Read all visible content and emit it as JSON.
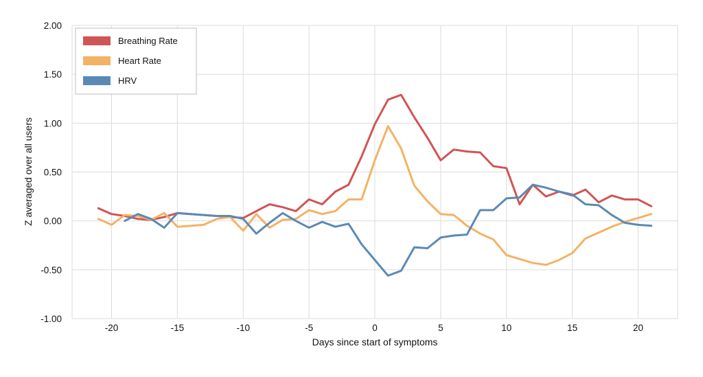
{
  "chart_data": {
    "type": "line",
    "title": "",
    "xlabel": "Days since start of symptoms",
    "ylabel": "Z averaged over all users",
    "xlim": [
      -23,
      23
    ],
    "ylim": [
      -1.0,
      2.0
    ],
    "xticks": [
      -20,
      -15,
      -10,
      -5,
      0,
      5,
      10,
      15,
      20
    ],
    "xtick_labels": [
      "-20",
      "-15",
      "-10",
      "-5",
      "0",
      "5",
      "10",
      "15",
      "20"
    ],
    "yticks": [
      -1.0,
      -0.5,
      0.0,
      0.5,
      1.0,
      1.5,
      2.0
    ],
    "ytick_labels": [
      "-1.00",
      "-0.50",
      "0.00",
      "0.50",
      "1.00",
      "1.50",
      "2.00"
    ],
    "grid": true,
    "legend_position": "top-left",
    "series": [
      {
        "name": "Breathing Rate",
        "color": "#d05454",
        "x": [
          -21,
          -20,
          -19,
          -18,
          -17,
          -16,
          -15,
          -14,
          -13,
          -12,
          -11,
          -10,
          -9,
          -8,
          -7,
          -6,
          -5,
          -4,
          -3,
          -2,
          -1,
          0,
          1,
          2,
          3,
          4,
          5,
          6,
          7,
          8,
          9,
          10,
          11,
          12,
          13,
          14,
          15,
          16,
          17,
          18,
          19,
          20,
          21
        ],
        "y": [
          0.13,
          0.07,
          0.05,
          0.02,
          0.01,
          0.04,
          0.08,
          0.07,
          0.06,
          0.05,
          0.04,
          0.03,
          0.1,
          0.17,
          0.14,
          0.1,
          0.22,
          0.17,
          0.3,
          0.37,
          0.66,
          0.99,
          1.24,
          1.29,
          1.06,
          0.85,
          0.62,
          0.73,
          0.71,
          0.7,
          0.56,
          0.54,
          0.17,
          0.37,
          0.25,
          0.3,
          0.26,
          0.32,
          0.19,
          0.26,
          0.22,
          0.22,
          0.15
        ]
      },
      {
        "name": "Heart Rate",
        "color": "#f3b266",
        "x": [
          -21,
          -20,
          -19,
          -18,
          -17,
          -16,
          -15,
          -14,
          -13,
          -12,
          -11,
          -10,
          -9,
          -8,
          -7,
          -6,
          -5,
          -4,
          -3,
          -2,
          -1,
          0,
          1,
          2,
          3,
          4,
          5,
          6,
          7,
          8,
          9,
          10,
          11,
          12,
          13,
          14,
          15,
          16,
          17,
          18,
          19,
          20,
          21
        ],
        "y": [
          0.02,
          -0.04,
          0.06,
          0.05,
          0.01,
          0.08,
          -0.06,
          -0.05,
          -0.04,
          0.02,
          0.04,
          -0.1,
          0.07,
          -0.07,
          0.01,
          0.02,
          0.11,
          0.07,
          0.1,
          0.22,
          0.22,
          0.62,
          0.97,
          0.74,
          0.36,
          0.2,
          0.07,
          0.06,
          -0.05,
          -0.13,
          -0.19,
          -0.35,
          -0.39,
          -0.43,
          -0.45,
          -0.4,
          -0.33,
          -0.18,
          -0.12,
          -0.06,
          -0.01,
          0.03,
          0.07
        ]
      },
      {
        "name": "HRV",
        "color": "#5b89b6",
        "x": [
          -19,
          -18,
          -17,
          -16,
          -15,
          -14,
          -13,
          -12,
          -11,
          -10,
          -9,
          -8,
          -7,
          -6,
          -5,
          -4,
          -3,
          -2,
          -1,
          0,
          1,
          2,
          3,
          4,
          5,
          6,
          7,
          8,
          9,
          10,
          11,
          12,
          13,
          14,
          15,
          16,
          17,
          18,
          19,
          20,
          21
        ],
        "y": [
          0.0,
          0.07,
          0.02,
          -0.07,
          0.08,
          0.07,
          0.06,
          0.05,
          0.05,
          0.02,
          -0.13,
          -0.02,
          0.08,
          0.0,
          -0.07,
          -0.01,
          -0.06,
          -0.03,
          -0.24,
          -0.4,
          -0.56,
          -0.51,
          -0.27,
          -0.28,
          -0.17,
          -0.15,
          -0.14,
          0.11,
          0.11,
          0.23,
          0.24,
          0.37,
          0.34,
          0.3,
          0.27,
          0.17,
          0.16,
          0.06,
          -0.02,
          -0.04,
          -0.05
        ]
      }
    ]
  }
}
